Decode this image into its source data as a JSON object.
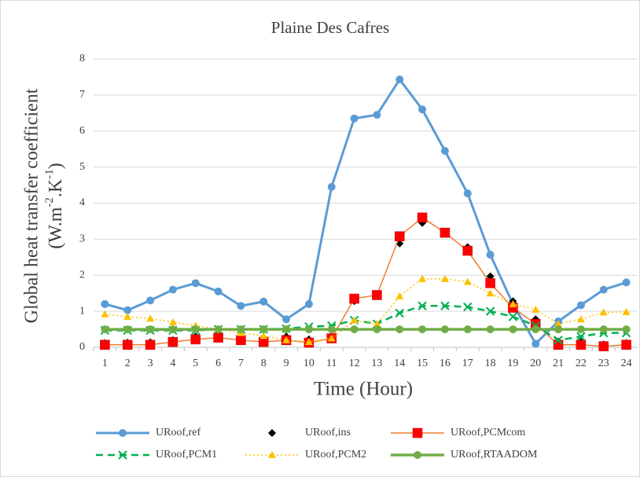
{
  "chart_data": {
    "type": "line",
    "title": "Plaine Des Cafres",
    "x_label": "Time (Hour)",
    "y_label_line1": "Global heat transfer coefficient",
    "y_label_line2": [
      "(W.m",
      "-2",
      ".K",
      "-1",
      ")"
    ],
    "categories": [
      "1",
      "2",
      "3",
      "4",
      "5",
      "6",
      "7",
      "8",
      "9",
      "10",
      "11",
      "12",
      "13",
      "14",
      "15",
      "16",
      "17",
      "18",
      "19",
      "20",
      "21",
      "22",
      "23",
      "24"
    ],
    "ylim": [
      0,
      8
    ],
    "yticks": [
      0,
      1,
      2,
      3,
      4,
      5,
      6,
      7,
      8
    ],
    "grid": true,
    "legend": "bottom",
    "series": [
      {
        "name": "URoof,ref",
        "color": "#5b9bd5",
        "line_style": "solid",
        "marker": "circle",
        "values": [
          1.2,
          1.03,
          1.3,
          1.6,
          1.78,
          1.55,
          1.15,
          1.27,
          0.78,
          1.2,
          4.45,
          6.35,
          6.45,
          7.43,
          6.6,
          5.45,
          4.27,
          2.57,
          1.2,
          0.1,
          0.72,
          1.17,
          1.6,
          1.8
        ]
      },
      {
        "name": "URoof,ins",
        "color": "#000000",
        "line_style": "none",
        "marker": "diamond",
        "values": [
          0.12,
          0.13,
          0.14,
          0.2,
          0.3,
          0.37,
          0.3,
          0.27,
          0.3,
          0.22,
          0.3,
          1.28,
          1.45,
          2.88,
          3.45,
          3.18,
          2.78,
          1.97,
          1.28,
          0.78,
          0.16,
          0.15,
          0.08,
          0.12
        ]
      },
      {
        "name": "URoof,PCMcom",
        "color": "#ed7d31",
        "marker_color": "#ff0000",
        "line_style": "solid",
        "marker": "square",
        "values": [
          0.07,
          0.07,
          0.07,
          0.15,
          0.22,
          0.27,
          0.2,
          0.15,
          0.2,
          0.13,
          0.25,
          1.35,
          1.45,
          3.08,
          3.6,
          3.18,
          2.68,
          1.78,
          1.1,
          0.65,
          0.07,
          0.07,
          0.03,
          0.07
        ]
      },
      {
        "name": "URoof,PCM1",
        "color": "#00b050",
        "line_style": "dashed",
        "marker": "x",
        "values": [
          0.47,
          0.47,
          0.47,
          0.47,
          0.47,
          0.5,
          0.5,
          0.5,
          0.52,
          0.57,
          0.6,
          0.75,
          0.65,
          0.95,
          1.15,
          1.15,
          1.12,
          1.0,
          0.85,
          0.6,
          0.2,
          0.3,
          0.4,
          0.4
        ]
      },
      {
        "name": "URoof,PCM2",
        "color": "#ffc000",
        "line_style": "dotted",
        "marker": "triangle",
        "values": [
          0.92,
          0.85,
          0.8,
          0.7,
          0.6,
          0.5,
          0.4,
          0.32,
          0.2,
          0.15,
          0.25,
          0.75,
          0.65,
          1.42,
          1.9,
          1.9,
          1.82,
          1.5,
          1.2,
          1.05,
          0.65,
          0.78,
          0.97,
          0.98
        ]
      },
      {
        "name": "URoof,RTAADOM",
        "color": "#70ad47",
        "line_style": "solid",
        "marker": "circle",
        "values": [
          0.5,
          0.5,
          0.5,
          0.5,
          0.5,
          0.5,
          0.5,
          0.5,
          0.5,
          0.5,
          0.5,
          0.5,
          0.5,
          0.5,
          0.5,
          0.5,
          0.5,
          0.5,
          0.5,
          0.5,
          0.5,
          0.5,
          0.5,
          0.5
        ]
      }
    ]
  }
}
